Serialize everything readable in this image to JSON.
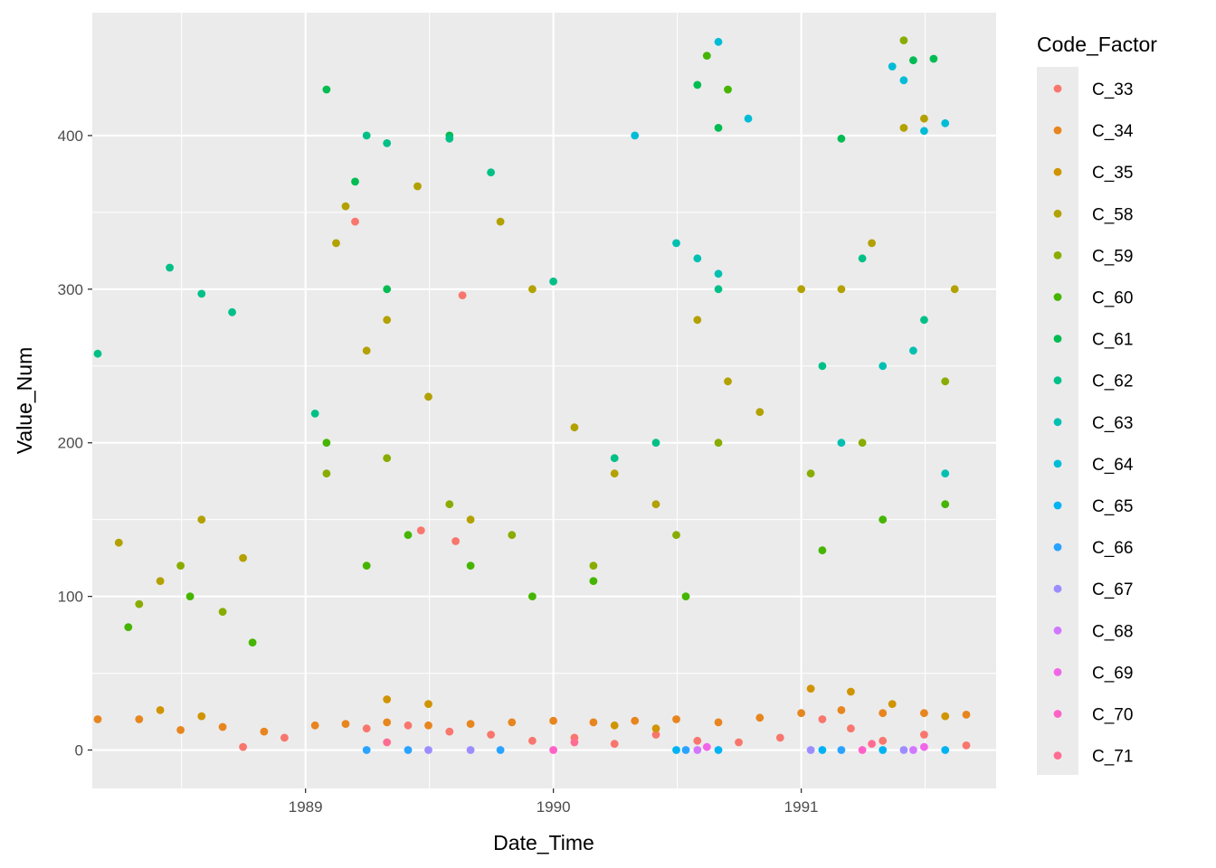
{
  "chart_data": {
    "type": "scatter",
    "title": "",
    "xlabel": "Date_Time",
    "ylabel": "Value_Num",
    "x_type": "date",
    "xlim": [
      "1988-02-22",
      "1991-10-15"
    ],
    "ylim": [
      -25,
      480
    ],
    "x_ticks": [
      {
        "value": "1989-01-01",
        "label": "1989"
      },
      {
        "value": "1990-01-01",
        "label": "1990"
      },
      {
        "value": "1991-01-01",
        "label": "1991"
      }
    ],
    "y_ticks": [
      {
        "value": 0,
        "label": "0"
      },
      {
        "value": 100,
        "label": "100"
      },
      {
        "value": 200,
        "label": "200"
      },
      {
        "value": 300,
        "label": "300"
      },
      {
        "value": 400,
        "label": "400"
      }
    ],
    "grid": true,
    "legend": {
      "title": "Code_Factor",
      "placement": "right",
      "entries": [
        {
          "name": "C_33",
          "color": "#F8766D"
        },
        {
          "name": "C_34",
          "color": "#E7851E"
        },
        {
          "name": "C_35",
          "color": "#D09400"
        },
        {
          "name": "C_58",
          "color": "#B2A100"
        },
        {
          "name": "C_59",
          "color": "#89AC00"
        },
        {
          "name": "C_60",
          "color": "#45B500"
        },
        {
          "name": "C_61",
          "color": "#00BC51"
        },
        {
          "name": "C_62",
          "color": "#00C087"
        },
        {
          "name": "C_63",
          "color": "#00C0B2"
        },
        {
          "name": "C_64",
          "color": "#00BCD6"
        },
        {
          "name": "C_65",
          "color": "#00B3F2"
        },
        {
          "name": "C_66",
          "color": "#29A3FF"
        },
        {
          "name": "C_67",
          "color": "#9C8DFF"
        },
        {
          "name": "C_68",
          "color": "#D277FF"
        },
        {
          "name": "C_69",
          "color": "#F166E8"
        },
        {
          "name": "C_70",
          "color": "#FF61C7"
        },
        {
          "name": "C_71",
          "color": "#FF6C91"
        }
      ]
    },
    "series": [
      {
        "name": "C_33",
        "points": [
          [
            "1989-03-15",
            344
          ],
          [
            "1989-06-20",
            143
          ],
          [
            "1989-08-20",
            296
          ],
          [
            "1989-08-10",
            136
          ],
          [
            "1988-10-01",
            2
          ],
          [
            "1988-12-01",
            8
          ],
          [
            "1989-04-01",
            14
          ],
          [
            "1989-06-01",
            16
          ],
          [
            "1989-08-01",
            12
          ],
          [
            "1989-10-01",
            10
          ],
          [
            "1989-12-01",
            6
          ],
          [
            "1990-02-01",
            8
          ],
          [
            "1990-04-01",
            4
          ],
          [
            "1990-06-01",
            10
          ],
          [
            "1990-08-01",
            6
          ],
          [
            "1990-10-01",
            5
          ],
          [
            "1990-12-01",
            8
          ],
          [
            "1991-02-01",
            20
          ],
          [
            "1991-03-15",
            14
          ],
          [
            "1991-05-01",
            6
          ],
          [
            "1991-07-01",
            10
          ],
          [
            "1991-09-01",
            3
          ]
        ]
      },
      {
        "name": "C_34",
        "points": [
          [
            "1988-03-01",
            20
          ],
          [
            "1988-05-01",
            20
          ],
          [
            "1988-07-01",
            13
          ],
          [
            "1988-09-01",
            15
          ],
          [
            "1988-11-01",
            12
          ],
          [
            "1989-01-15",
            16
          ],
          [
            "1989-03-01",
            17
          ],
          [
            "1989-05-01",
            18
          ],
          [
            "1989-07-01",
            16
          ],
          [
            "1989-09-01",
            17
          ],
          [
            "1989-11-01",
            18
          ],
          [
            "1990-01-01",
            19
          ],
          [
            "1990-03-01",
            18
          ],
          [
            "1990-05-01",
            19
          ],
          [
            "1990-07-01",
            20
          ],
          [
            "1990-09-01",
            18
          ],
          [
            "1990-11-01",
            21
          ],
          [
            "1991-01-01",
            24
          ],
          [
            "1991-03-01",
            26
          ],
          [
            "1991-05-01",
            24
          ],
          [
            "1991-07-01",
            24
          ],
          [
            "1991-09-01",
            23
          ]
        ]
      },
      {
        "name": "C_35",
        "points": [
          [
            "1988-06-01",
            26
          ],
          [
            "1988-08-01",
            22
          ],
          [
            "1989-05-01",
            33
          ],
          [
            "1989-07-01",
            30
          ],
          [
            "1990-04-01",
            16
          ],
          [
            "1990-06-01",
            14
          ],
          [
            "1991-01-15",
            40
          ],
          [
            "1991-03-15",
            38
          ],
          [
            "1991-05-15",
            30
          ],
          [
            "1991-08-01",
            22
          ]
        ]
      },
      {
        "name": "C_58",
        "points": [
          [
            "1988-04-01",
            135
          ],
          [
            "1988-06-01",
            110
          ],
          [
            "1988-08-01",
            150
          ],
          [
            "1988-10-01",
            125
          ],
          [
            "1989-02-15",
            330
          ],
          [
            "1989-03-01",
            354
          ],
          [
            "1989-04-01",
            260
          ],
          [
            "1989-05-01",
            280
          ],
          [
            "1989-06-15",
            367
          ],
          [
            "1989-07-01",
            230
          ],
          [
            "1989-09-01",
            150
          ],
          [
            "1989-10-15",
            344
          ],
          [
            "1989-12-01",
            300
          ],
          [
            "1990-02-01",
            210
          ],
          [
            "1990-04-01",
            180
          ],
          [
            "1990-06-01",
            160
          ],
          [
            "1990-08-01",
            280
          ],
          [
            "1990-09-15",
            240
          ],
          [
            "1990-11-01",
            220
          ],
          [
            "1991-01-01",
            300
          ],
          [
            "1991-03-01",
            300
          ],
          [
            "1991-04-15",
            330
          ],
          [
            "1991-06-01",
            405
          ],
          [
            "1991-07-01",
            411
          ],
          [
            "1991-08-15",
            300
          ]
        ]
      },
      {
        "name": "C_59",
        "points": [
          [
            "1988-05-01",
            95
          ],
          [
            "1988-07-01",
            120
          ],
          [
            "1988-09-01",
            90
          ],
          [
            "1989-02-01",
            180
          ],
          [
            "1989-05-01",
            190
          ],
          [
            "1989-08-01",
            160
          ],
          [
            "1989-11-01",
            140
          ],
          [
            "1990-03-01",
            120
          ],
          [
            "1990-07-01",
            140
          ],
          [
            "1990-09-01",
            200
          ],
          [
            "1991-01-15",
            180
          ],
          [
            "1991-04-01",
            200
          ],
          [
            "1991-06-01",
            462
          ],
          [
            "1991-08-01",
            240
          ]
        ]
      },
      {
        "name": "C_60",
        "points": [
          [
            "1988-04-15",
            80
          ],
          [
            "1988-07-15",
            100
          ],
          [
            "1988-10-15",
            70
          ],
          [
            "1989-02-01",
            200
          ],
          [
            "1989-04-01",
            120
          ],
          [
            "1989-06-01",
            140
          ],
          [
            "1989-09-01",
            120
          ],
          [
            "1989-12-01",
            100
          ],
          [
            "1990-03-01",
            110
          ],
          [
            "1990-07-15",
            100
          ],
          [
            "1990-08-15",
            452
          ],
          [
            "1990-09-15",
            430
          ],
          [
            "1991-02-01",
            130
          ],
          [
            "1991-05-01",
            150
          ],
          [
            "1991-08-01",
            160
          ]
        ]
      },
      {
        "name": "C_61",
        "points": [
          [
            "1989-02-01",
            430
          ],
          [
            "1989-03-15",
            370
          ],
          [
            "1989-05-01",
            300
          ],
          [
            "1989-08-01",
            400
          ],
          [
            "1990-08-01",
            433
          ],
          [
            "1990-09-01",
            405
          ],
          [
            "1991-03-01",
            398
          ],
          [
            "1991-06-15",
            449
          ],
          [
            "1991-07-15",
            450
          ]
        ]
      },
      {
        "name": "C_62",
        "points": [
          [
            "1988-03-01",
            258
          ],
          [
            "1988-06-15",
            314
          ],
          [
            "1988-08-01",
            297
          ],
          [
            "1988-09-15",
            285
          ],
          [
            "1989-01-15",
            219
          ],
          [
            "1989-04-01",
            400
          ],
          [
            "1989-05-01",
            395
          ],
          [
            "1989-08-01",
            398
          ],
          [
            "1989-10-01",
            376
          ],
          [
            "1990-01-01",
            305
          ],
          [
            "1990-04-01",
            190
          ],
          [
            "1990-06-01",
            200
          ],
          [
            "1990-09-01",
            300
          ],
          [
            "1991-02-01",
            250
          ],
          [
            "1991-04-01",
            320
          ],
          [
            "1991-07-01",
            280
          ]
        ]
      },
      {
        "name": "C_63",
        "points": [
          [
            "1990-07-01",
            330
          ],
          [
            "1990-08-01",
            320
          ],
          [
            "1990-09-01",
            310
          ],
          [
            "1991-03-01",
            200
          ],
          [
            "1991-05-01",
            250
          ],
          [
            "1991-06-15",
            260
          ],
          [
            "1991-08-01",
            180
          ]
        ]
      },
      {
        "name": "C_64",
        "points": [
          [
            "1990-05-01",
            400
          ],
          [
            "1990-09-01",
            461
          ],
          [
            "1990-10-15",
            411
          ],
          [
            "1991-05-15",
            445
          ],
          [
            "1991-06-01",
            436
          ],
          [
            "1991-08-01",
            408
          ],
          [
            "1991-07-01",
            403
          ]
        ]
      },
      {
        "name": "C_65",
        "points": [
          [
            "1990-07-01",
            0
          ],
          [
            "1990-09-01",
            0
          ],
          [
            "1991-02-01",
            0
          ],
          [
            "1991-05-01",
            0
          ],
          [
            "1991-08-01",
            0
          ]
        ]
      },
      {
        "name": "C_66",
        "points": [
          [
            "1989-04-01",
            0
          ],
          [
            "1989-06-01",
            0
          ],
          [
            "1989-10-15",
            0
          ],
          [
            "1990-07-15",
            0
          ],
          [
            "1991-03-01",
            0
          ]
        ]
      },
      {
        "name": "C_67",
        "points": [
          [
            "1989-07-01",
            0
          ],
          [
            "1989-09-01",
            0
          ],
          [
            "1991-01-15",
            0
          ],
          [
            "1991-06-01",
            0
          ]
        ]
      },
      {
        "name": "C_68",
        "points": [
          [
            "1990-08-01",
            0
          ],
          [
            "1991-06-15",
            0
          ]
        ]
      },
      {
        "name": "C_69",
        "points": [
          [
            "1990-08-15",
            2
          ],
          [
            "1991-07-01",
            2
          ]
        ]
      },
      {
        "name": "C_70",
        "points": [
          [
            "1990-01-01",
            0
          ],
          [
            "1991-04-01",
            0
          ]
        ]
      },
      {
        "name": "C_71",
        "points": [
          [
            "1989-05-01",
            5
          ],
          [
            "1990-02-01",
            5
          ],
          [
            "1991-04-15",
            4
          ]
        ]
      }
    ]
  }
}
